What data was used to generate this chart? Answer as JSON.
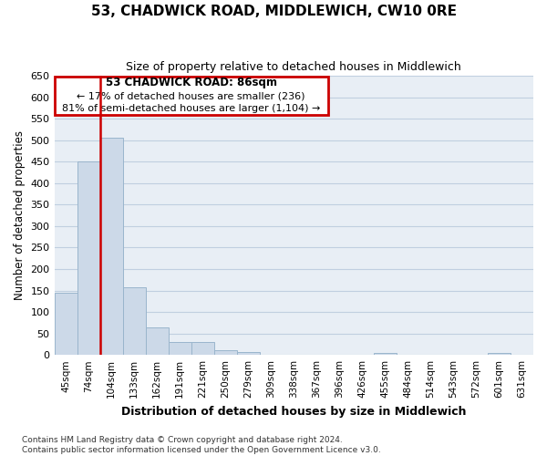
{
  "title": "53, CHADWICK ROAD, MIDDLEWICH, CW10 0RE",
  "subtitle": "Size of property relative to detached houses in Middlewich",
  "xlabel": "Distribution of detached houses by size in Middlewich",
  "ylabel": "Number of detached properties",
  "categories": [
    "45sqm",
    "74sqm",
    "104sqm",
    "133sqm",
    "162sqm",
    "191sqm",
    "221sqm",
    "250sqm",
    "279sqm",
    "309sqm",
    "338sqm",
    "367sqm",
    "396sqm",
    "426sqm",
    "455sqm",
    "484sqm",
    "514sqm",
    "543sqm",
    "572sqm",
    "601sqm",
    "631sqm"
  ],
  "values": [
    145,
    450,
    505,
    158,
    65,
    30,
    30,
    12,
    7,
    0,
    0,
    0,
    0,
    0,
    5,
    0,
    0,
    0,
    0,
    5,
    0
  ],
  "bar_color": "#ccd9e8",
  "bar_edge_color": "#9ab5cc",
  "property_line_label": "53 CHADWICK ROAD: 86sqm",
  "annotation_line1": "← 17% of detached houses are smaller (236)",
  "annotation_line2": "81% of semi-detached houses are larger (1,104) →",
  "annotation_box_edgecolor": "#cc0000",
  "ylim": [
    0,
    650
  ],
  "yticks": [
    0,
    50,
    100,
    150,
    200,
    250,
    300,
    350,
    400,
    450,
    500,
    550,
    600,
    650
  ],
  "grid_color": "#c0cfe0",
  "background_color": "#e8eef5",
  "footer1": "Contains HM Land Registry data © Crown copyright and database right 2024.",
  "footer2": "Contains public sector information licensed under the Open Government Licence v3.0."
}
